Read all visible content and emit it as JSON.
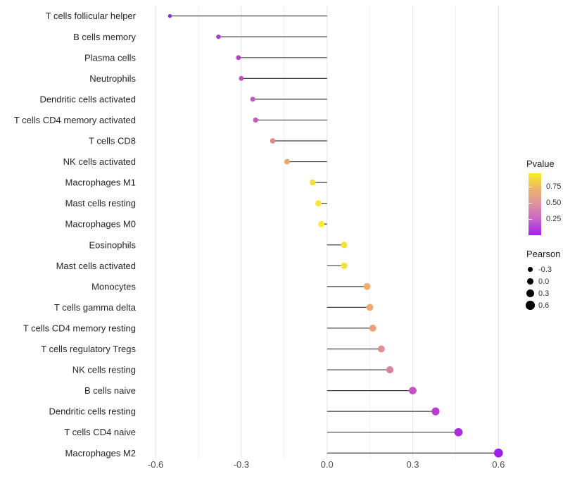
{
  "chart_data": {
    "type": "scatter",
    "variant": "lollipop",
    "orientation": "horizontal",
    "title": "",
    "xlabel": "",
    "ylabel": "",
    "grid": true,
    "background": "#FFFFFF",
    "xlim": [
      -0.66,
      0.64
    ],
    "x_ticks": {
      "values": [
        -0.6,
        -0.3,
        0.0,
        0.3,
        0.6
      ],
      "labels": [
        "-0.6",
        "-0.3",
        "0.0",
        "0.3",
        "0.6"
      ]
    },
    "x_minor_ticks": [
      -0.45,
      -0.15,
      0.15,
      0.45
    ],
    "categories": [
      "T cells follicular helper",
      "B cells memory",
      "Plasma cells",
      "Neutrophils",
      "Dendritic cells activated",
      "T cells CD4 memory activated",
      "T cells CD8",
      "NK cells activated",
      "Macrophages M1",
      "Mast cells resting",
      "Macrophages M0",
      "Eosinophils",
      "Mast cells activated",
      "Monocytes",
      "T cells gamma delta",
      "T cells CD4 memory resting",
      "T cells regulatory  Tregs",
      "NK cells resting",
      "B cells naive",
      "Dendritic cells resting",
      "T cells CD4 naive",
      "Macrophages M2"
    ],
    "points": [
      {
        "label": "T cells follicular helper",
        "pearson": -0.55,
        "color": "#8529DD"
      },
      {
        "label": "B cells memory",
        "pearson": -0.38,
        "color": "#A83BC8"
      },
      {
        "label": "Plasma cells",
        "pearson": -0.31,
        "color": "#B446C4"
      },
      {
        "label": "Neutrophils",
        "pearson": -0.3,
        "color": "#BB4EC0"
      },
      {
        "label": "Dendritic cells activated",
        "pearson": -0.26,
        "color": "#C159BA"
      },
      {
        "label": "T cells CD4 memory activated",
        "pearson": -0.25,
        "color": "#C25EB7"
      },
      {
        "label": "T cells CD8",
        "pearson": -0.19,
        "color": "#DB8A87"
      },
      {
        "label": "NK cells activated",
        "pearson": -0.14,
        "color": "#E9A96E"
      },
      {
        "label": "Macrophages M1",
        "pearson": -0.05,
        "color": "#F2DF3E"
      },
      {
        "label": "Mast cells resting",
        "pearson": -0.03,
        "color": "#F6E532"
      },
      {
        "label": "Macrophages M0",
        "pearson": -0.02,
        "color": "#F8EB2A"
      },
      {
        "label": "Eosinophils",
        "pearson": 0.06,
        "color": "#F4E13A"
      },
      {
        "label": "Mast cells activated",
        "pearson": 0.06,
        "color": "#F4E03A"
      },
      {
        "label": "Monocytes",
        "pearson": 0.14,
        "color": "#EDAD6C"
      },
      {
        "label": "T cells gamma delta",
        "pearson": 0.15,
        "color": "#ECA873"
      },
      {
        "label": "T cells CD4 memory resting",
        "pearson": 0.16,
        "color": "#EAA17B"
      },
      {
        "label": "T cells regulatory  Tregs",
        "pearson": 0.19,
        "color": "#E08E97"
      },
      {
        "label": "NK cells resting",
        "pearson": 0.22,
        "color": "#D981A2"
      },
      {
        "label": "B cells naive",
        "pearson": 0.3,
        "color": "#C552C3"
      },
      {
        "label": "Dendritic cells resting",
        "pearson": 0.38,
        "color": "#B73ED1"
      },
      {
        "label": "T cells CD4 naive",
        "pearson": 0.46,
        "color": "#A92BDF"
      },
      {
        "label": "Macrophages M2",
        "pearson": 0.6,
        "color": "#9C20EA"
      }
    ]
  },
  "legend": {
    "pvalue": {
      "title": "Pvalue",
      "range": [
        0,
        0.96
      ],
      "ticks": [
        {
          "value": 0.75,
          "label": "0.75"
        },
        {
          "value": 0.5,
          "label": "0.50"
        },
        {
          "value": 0.25,
          "label": "0.25"
        }
      ],
      "gradient_bottom_to_top": [
        "#A122EE",
        "#C763C9",
        "#DE919E",
        "#EDB46D",
        "#F9ED21"
      ]
    },
    "pearson": {
      "title": "Pearson",
      "dot_color": "#000000",
      "items": [
        {
          "value": -0.3,
          "label": "-0.3"
        },
        {
          "value": 0.0,
          "label": "0.0"
        },
        {
          "value": 0.3,
          "label": "0.3"
        },
        {
          "value": 0.6,
          "label": "0.6"
        }
      ]
    }
  },
  "styles": {
    "segment_color": "#3F3F3F",
    "grid_major": "#E3E3E3",
    "grid_minor": "#F1F1F1",
    "axis_text": "#4D4D4D",
    "label_text": "#262626"
  }
}
